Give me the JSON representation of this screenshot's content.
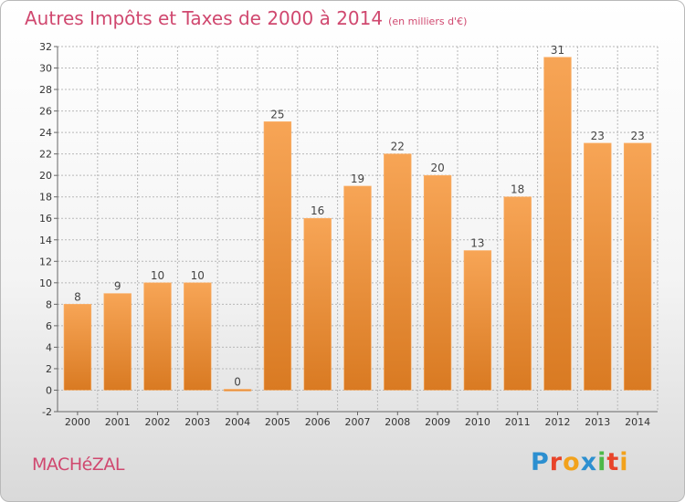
{
  "title": "Autres Impôts et Taxes de 2000 à 2014",
  "unit": "(en milliers d'€)",
  "commune": "MACHéZAL",
  "logo": [
    "P",
    "r",
    "o",
    "x",
    "i",
    "t",
    "i"
  ],
  "colors": {
    "bar": "#ee8d3a",
    "barDark": "#d77a22",
    "title": "#d0486f",
    "grid": "#b8b8b8"
  },
  "chart_data": {
    "type": "bar",
    "categories": [
      "2000",
      "2001",
      "2002",
      "2003",
      "2004",
      "2005",
      "2006",
      "2007",
      "2008",
      "2009",
      "2010",
      "2011",
      "2012",
      "2013",
      "2014"
    ],
    "values": [
      8,
      9,
      10,
      10,
      0,
      25,
      16,
      19,
      22,
      20,
      13,
      18,
      31,
      23,
      23
    ],
    "title": "Autres Impôts et Taxes de 2000 à 2014",
    "ylim": [
      -2,
      32
    ],
    "yticks": [
      -2,
      0,
      2,
      4,
      6,
      8,
      10,
      12,
      14,
      16,
      18,
      20,
      22,
      24,
      26,
      28,
      30,
      32
    ],
    "grid": true
  }
}
